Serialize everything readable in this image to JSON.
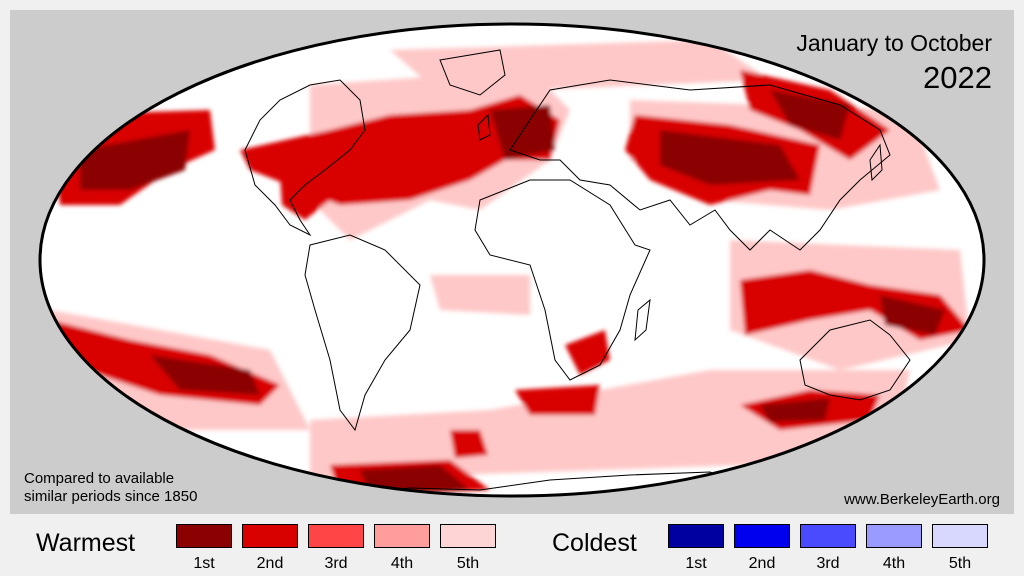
{
  "period": {
    "line1": "January to October",
    "line2": "2022"
  },
  "note": {
    "line1": "Compared to available",
    "line2": "similar periods since 1850"
  },
  "site": "www.BerkeleyEarth.org",
  "legend": {
    "warm": {
      "title": "Warmest",
      "items": [
        {
          "label": "1st",
          "color": "#8b0000"
        },
        {
          "label": "2nd",
          "color": "#d90000"
        },
        {
          "label": "3rd",
          "color": "#ff4545"
        },
        {
          "label": "4th",
          "color": "#ff9c9c"
        },
        {
          "label": "5th",
          "color": "#ffd4d4"
        }
      ]
    },
    "cold": {
      "title": "Coldest",
      "items": [
        {
          "label": "1st",
          "color": "#0000a0"
        },
        {
          "label": "2nd",
          "color": "#0000ee"
        },
        {
          "label": "3rd",
          "color": "#4a4aff"
        },
        {
          "label": "4th",
          "color": "#9b9bff"
        },
        {
          "label": "5th",
          "color": "#d8d8ff"
        }
      ]
    }
  },
  "map": {
    "projection": "Mollweide",
    "background_color": "#cccccc",
    "ocean_land_color": "#ffffff",
    "coastline_color": "#000000"
  }
}
